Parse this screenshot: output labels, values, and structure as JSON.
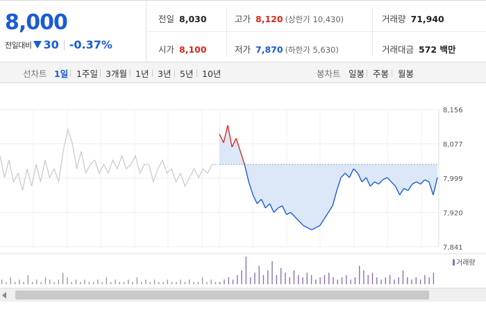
{
  "price": {
    "current": "8,000",
    "change_label": "전일대비",
    "change_amount": "30",
    "change_pct": "-0.37%"
  },
  "stats": {
    "prev_close": {
      "label": "전일",
      "value": "8,030"
    },
    "high": {
      "label": "고가",
      "value": "8,120",
      "extra": "(상한가 10,430)"
    },
    "volume": {
      "label": "거래량",
      "value": "71,940"
    },
    "open": {
      "label": "시가",
      "value": "8,100"
    },
    "low": {
      "label": "저가",
      "value": "7,870",
      "extra": "(하한가 5,630)"
    },
    "trade_value": {
      "label": "거래대금",
      "value": "572 백만"
    }
  },
  "tabs": {
    "line_label": "선차트",
    "line_periods": [
      "1일",
      "1주일",
      "3개월",
      "1년",
      "3년",
      "5년",
      "10년"
    ],
    "selected": "1일",
    "candle_label": "봉차트",
    "candle_periods": [
      "일봉",
      "주봉",
      "월봉"
    ]
  },
  "colors": {
    "up": "#e0261c",
    "down": "#1a5bd6",
    "prev_line": "#c8c8c8",
    "fill_down": "#dce8f8",
    "fill_up": "#f9dede",
    "volume_bar": "#8a6fb5"
  },
  "chart_data": {
    "type": "line",
    "ylim": [
      7841,
      8156
    ],
    "yticks": [
      "8,156",
      "8,077",
      "7,999",
      "7,920",
      "7,841"
    ],
    "baseline": 8030,
    "volume_legend": "거래량",
    "series": [
      {
        "values": [
          8050,
          8000,
          8040,
          7990,
          8010,
          7970,
          8020,
          7980,
          8030,
          7990,
          8040,
          8000,
          8020,
          7990,
          8060,
          8110,
          8080,
          8020,
          8060,
          8010,
          8030,
          8040,
          8010,
          8030,
          8010,
          8040,
          8020,
          8050,
          8020,
          8030,
          8050,
          8010,
          8030,
          8030,
          7990,
          8020,
          8040,
          8010,
          8020,
          7990,
          8010,
          7980,
          8000,
          8020,
          8000,
          8020,
          8010,
          8030,
          8030
        ]
      },
      {
        "values": [
          8100,
          8080,
          8120,
          8070,
          8090,
          8060,
          8030,
          7990,
          7960,
          7940,
          7950,
          7930,
          7940,
          7920,
          7930,
          7935,
          7915,
          7920,
          7910,
          7900,
          7890,
          7885,
          7880,
          7885,
          7890,
          7905,
          7920,
          7935,
          7970,
          8000,
          8010,
          8000,
          8020,
          8010,
          7990,
          8000,
          7980,
          7990,
          7985,
          7995,
          8000,
          7990,
          7980,
          7960,
          7975,
          7970,
          7985,
          7990,
          7985,
          7995,
          7990,
          7960,
          8000
        ]
      }
    ],
    "volume": [
      2,
      1,
      3,
      1,
      2,
      1,
      4,
      1,
      2,
      1,
      3,
      2,
      1,
      2,
      5,
      3,
      1,
      2,
      1,
      2,
      1,
      1,
      2,
      1,
      3,
      1,
      2,
      1,
      1,
      2,
      1,
      3,
      1,
      2,
      1,
      2,
      1,
      1,
      2,
      1,
      1,
      2,
      1,
      2,
      1,
      1,
      3,
      1,
      2,
      1,
      1,
      2,
      3,
      2,
      4,
      6,
      12,
      3,
      5,
      8,
      4,
      6,
      10,
      4,
      7,
      5,
      3,
      6,
      4,
      3,
      5,
      4,
      2,
      3,
      4,
      5,
      3,
      2,
      3,
      4,
      2,
      3,
      8,
      6,
      4,
      5,
      3,
      2,
      3,
      4,
      2,
      3,
      6,
      3,
      2,
      3,
      2,
      4,
      3,
      5
    ]
  }
}
